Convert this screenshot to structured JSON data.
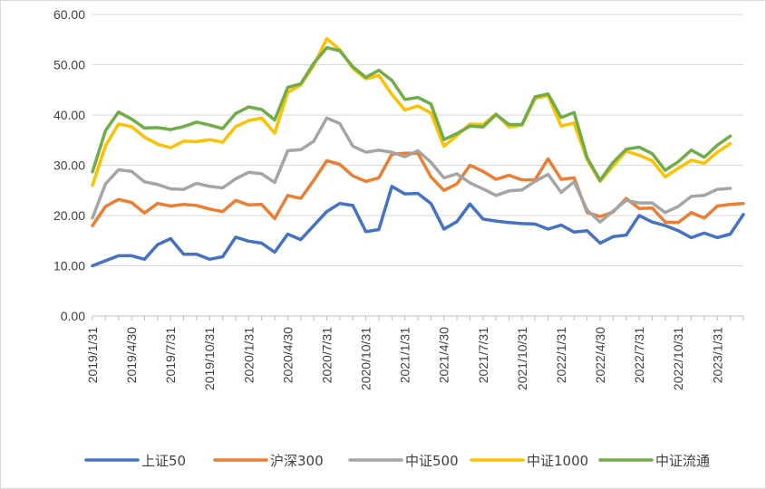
{
  "chart_data": {
    "type": "line",
    "title": "",
    "xlabel": "",
    "ylabel": "",
    "ylim": [
      0,
      60
    ],
    "yticks": [
      "0.00",
      "10.00",
      "20.00",
      "30.00",
      "40.00",
      "50.00",
      "60.00"
    ],
    "xtick_labels": [
      "2019/1/31",
      "2019/4/30",
      "2019/7/31",
      "2019/10/31",
      "2020/1/31",
      "2020/4/30",
      "2020/7/31",
      "2020/10/31",
      "2021/1/31",
      "2021/4/30",
      "2021/7/31",
      "2021/10/31",
      "2022/1/31",
      "2022/4/30",
      "2022/7/31",
      "2022/10/31",
      "2023/1/31"
    ],
    "grid": true,
    "legend_position": "bottom",
    "series": [
      {
        "name": "上证50",
        "color": "#4472C4",
        "values": [
          10.0,
          11.0,
          12.0,
          12.0,
          11.3,
          14.2,
          15.4,
          12.3,
          12.3,
          11.3,
          11.8,
          15.7,
          14.9,
          14.5,
          12.7,
          16.3,
          15.2,
          18.0,
          20.8,
          22.4,
          22.0,
          16.8,
          17.2,
          25.8,
          24.3,
          24.4,
          22.4,
          17.3,
          18.8,
          22.3,
          19.3,
          18.9,
          18.6,
          18.4,
          18.3,
          17.3,
          18.1,
          16.7,
          17.0,
          14.5,
          15.8,
          16.1,
          20.0,
          18.7,
          18.0,
          17.0,
          15.6,
          16.5,
          15.6,
          16.3,
          20.2
        ]
      },
      {
        "name": "沪深300",
        "color": "#ED7D31",
        "values": [
          18.0,
          21.8,
          23.2,
          22.6,
          20.5,
          22.4,
          21.9,
          22.2,
          22.0,
          21.3,
          20.8,
          23.0,
          22.1,
          22.2,
          19.4,
          24.0,
          23.4,
          27.0,
          30.9,
          30.2,
          27.9,
          26.8,
          27.5,
          32.2,
          32.4,
          32.4,
          27.7,
          25.0,
          26.3,
          30.0,
          28.8,
          27.2,
          28.0,
          27.1,
          27.1,
          31.3,
          27.2,
          27.5,
          20.6,
          19.8,
          20.7,
          23.4,
          21.4,
          21.5,
          18.7,
          18.6,
          20.6,
          19.5,
          21.9,
          22.2,
          22.4
        ]
      },
      {
        "name": "中证500",
        "color": "#A5A5A5",
        "values": [
          19.5,
          26.3,
          29.1,
          28.8,
          26.7,
          26.2,
          25.3,
          25.2,
          26.4,
          25.8,
          25.5,
          27.3,
          28.6,
          28.3,
          26.6,
          32.9,
          33.1,
          34.8,
          39.4,
          38.3,
          33.8,
          32.6,
          33.0,
          32.6,
          31.7,
          32.9,
          30.6,
          27.5,
          28.3,
          26.5,
          25.3,
          24.0,
          24.9,
          25.1,
          26.8,
          28.2,
          24.6,
          26.7,
          21.1,
          18.7,
          20.9,
          23.0,
          22.5,
          22.5,
          20.6,
          21.8,
          23.8,
          24.0,
          25.2,
          25.4
        ]
      },
      {
        "name": "中证1000",
        "color": "#FFC000",
        "values": [
          26.0,
          33.9,
          38.2,
          37.7,
          35.6,
          34.2,
          33.5,
          34.8,
          34.7,
          35.1,
          34.6,
          37.7,
          38.9,
          39.4,
          36.4,
          44.5,
          46.0,
          49.9,
          55.2,
          53.0,
          49.3,
          47.2,
          47.9,
          44.1,
          41.0,
          41.8,
          40.4,
          33.8,
          35.9,
          38.2,
          38.1,
          40.2,
          37.6,
          38.0,
          43.3,
          43.9,
          37.8,
          38.4,
          31.1,
          26.8,
          29.9,
          32.8,
          32.0,
          30.9,
          27.7,
          29.4,
          31.0,
          30.4,
          32.6,
          34.3
        ]
      },
      {
        "name": "中证流通",
        "color": "#70AD47",
        "values": [
          28.7,
          36.9,
          40.6,
          39.2,
          37.4,
          37.5,
          37.1,
          37.7,
          38.6,
          38.0,
          37.3,
          40.3,
          41.6,
          41.1,
          39.0,
          45.5,
          46.2,
          50.3,
          53.4,
          52.8,
          49.6,
          47.5,
          48.9,
          46.9,
          43.1,
          43.5,
          42.2,
          35.1,
          36.3,
          37.8,
          37.6,
          40.1,
          38.1,
          38.1,
          43.6,
          44.2,
          39.5,
          40.5,
          31.5,
          27.0,
          30.6,
          33.2,
          33.6,
          32.3,
          29.0,
          30.7,
          33.0,
          31.6,
          34.0,
          35.8
        ]
      }
    ]
  }
}
